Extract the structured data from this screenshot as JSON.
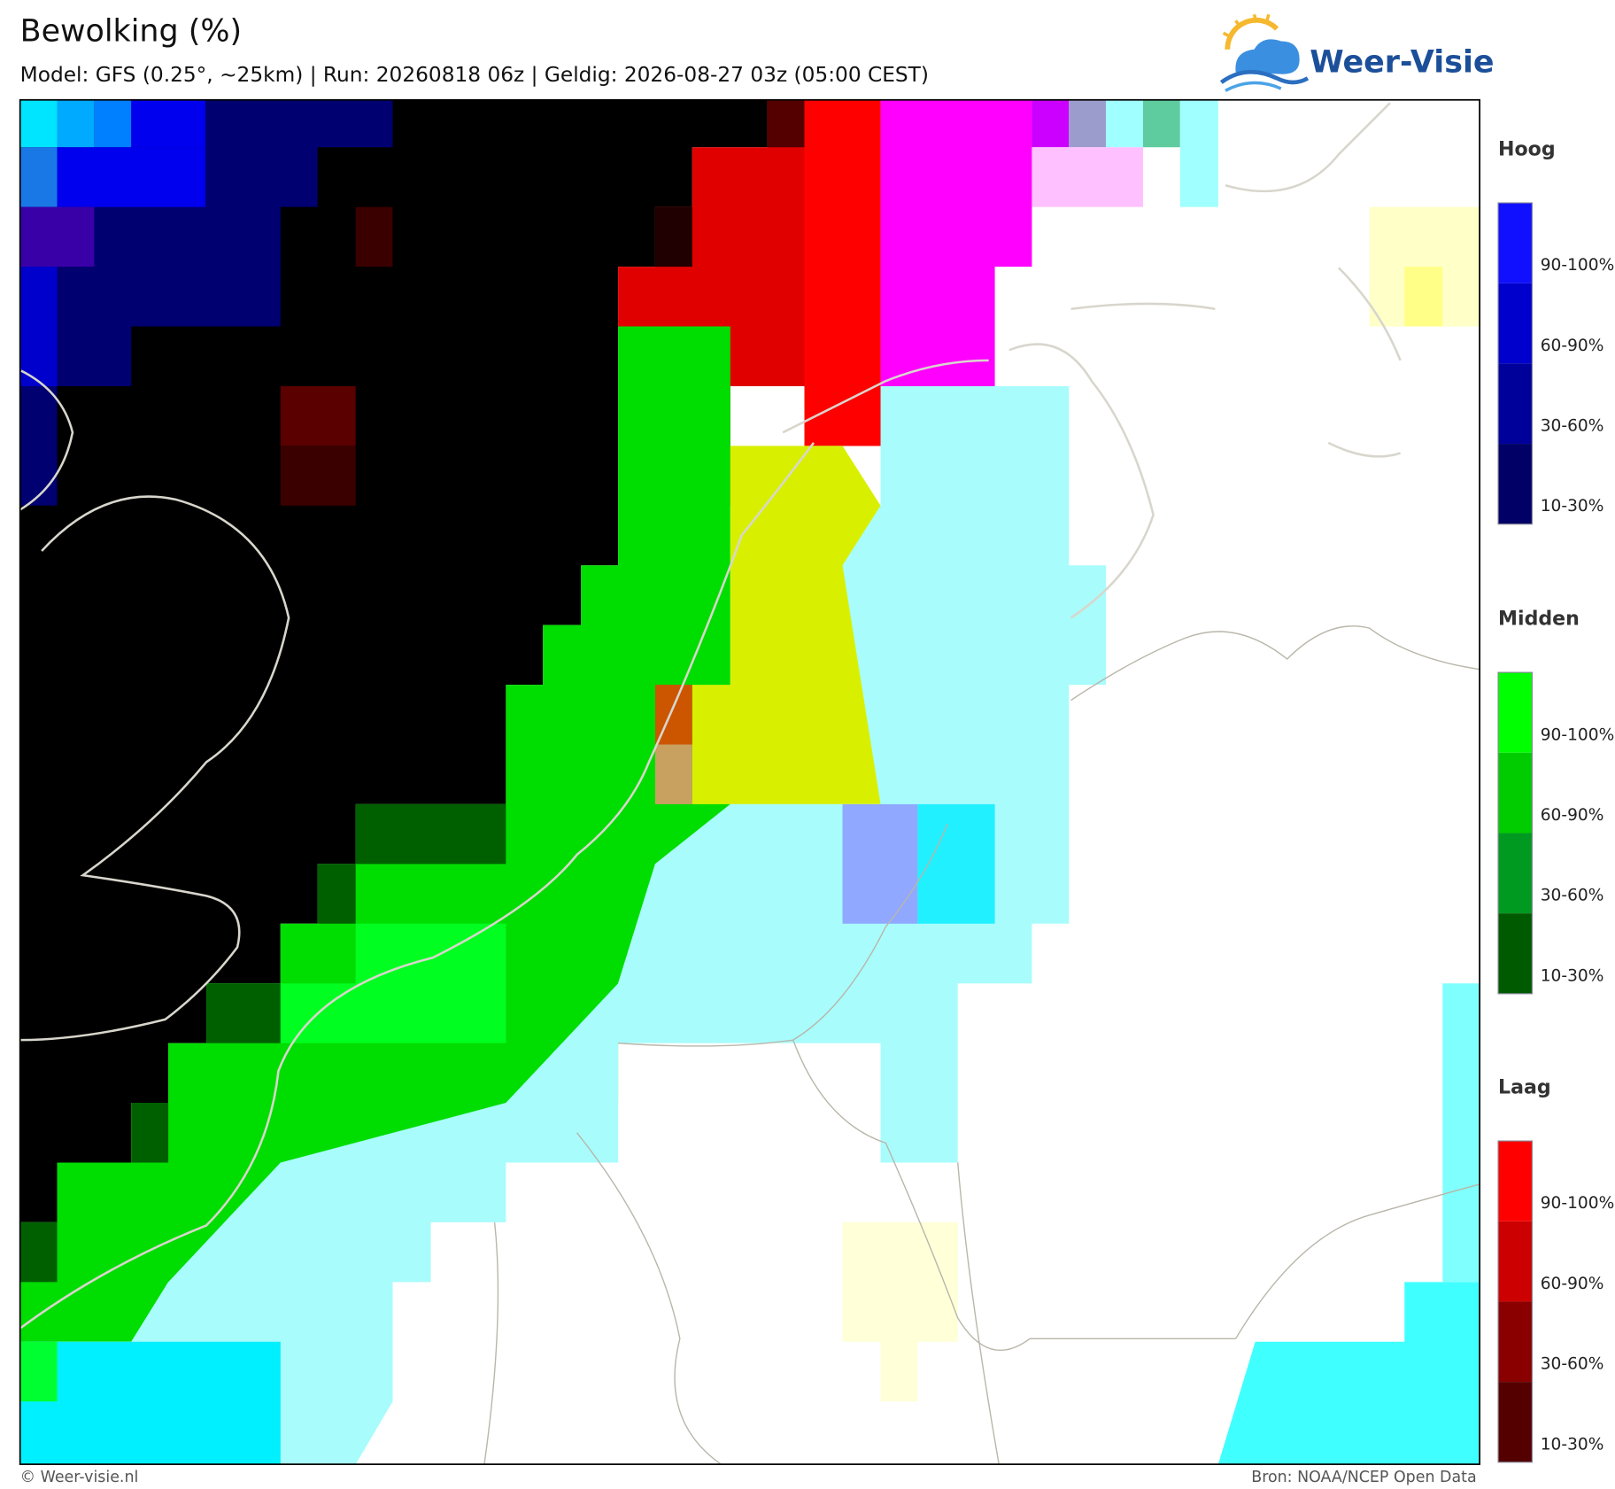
{
  "header": {
    "title": "Bewolking (%)",
    "subtitle": "Model: GFS (0.25°, ~25km)  |  Run: 20260818 06z  |  Geldig: 2026-08-27 03z (05:00 CEST)",
    "logo": "Weer-Visie"
  },
  "legend": [
    {
      "title": "Hoog",
      "labels": [
        "90-100%",
        "60-90%",
        "30-60%",
        "10-30%"
      ]
    },
    {
      "title": "Midden",
      "labels": [
        "90-100%",
        "60-90%",
        "30-60%",
        "10-30%"
      ]
    },
    {
      "title": "Laag",
      "labels": [
        "90-100%",
        "60-90%",
        "30-60%",
        "10-30%"
      ]
    }
  ],
  "footer": {
    "credit": "© Weer-visie.nl",
    "source": "Bron: NOAA/NCEP Open Data"
  }
}
